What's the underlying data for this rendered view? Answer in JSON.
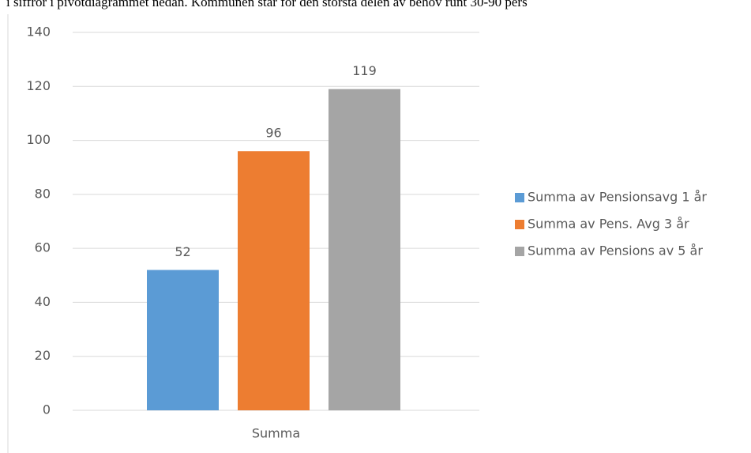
{
  "caption": "i siffror i pivotdiagrammet nedan. Kommunen står för den största delen av behov runt 30-90 pers",
  "chart_data": {
    "type": "bar",
    "categories": [
      "Summa"
    ],
    "series": [
      {
        "name": "Summa av Pensionsavg 1 år",
        "color": "#5b9bd5",
        "values": [
          52
        ]
      },
      {
        "name": "Summa av Pens. Avg 3 år",
        "color": "#ed7d31",
        "values": [
          96
        ]
      },
      {
        "name": "Summa av Pensions av 5 år",
        "color": "#a5a5a5",
        "values": [
          119
        ]
      }
    ],
    "ylim": [
      0,
      140
    ],
    "yticks": [
      0,
      20,
      40,
      60,
      80,
      100,
      120,
      140
    ],
    "grid": true,
    "legend": "right"
  }
}
